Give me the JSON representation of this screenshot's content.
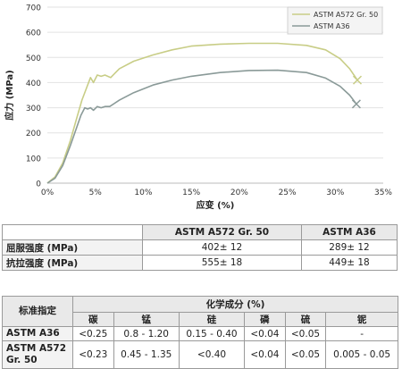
{
  "chart_data": {
    "type": "line",
    "xlabel": "应变 (%)",
    "ylabel": "应力 (MPa)",
    "xlim": [
      0,
      35
    ],
    "ylim": [
      0,
      700
    ],
    "x_ticks": [
      "0%",
      "5%",
      "10%",
      "15%",
      "20%",
      "25%",
      "30%",
      "35%"
    ],
    "y_ticks": [
      "0",
      "100",
      "200",
      "300",
      "400",
      "500",
      "600",
      "700"
    ],
    "grid": "horizontal",
    "legend": "top-right",
    "series": [
      {
        "name": "ASTM A572 Gr. 50",
        "color": "#c8cd86",
        "end_marker": "x",
        "points": [
          [
            0,
            0
          ],
          [
            0.8,
            25
          ],
          [
            1.6,
            80
          ],
          [
            2.4,
            170
          ],
          [
            3.0,
            250
          ],
          [
            3.6,
            330
          ],
          [
            4.1,
            380
          ],
          [
            4.5,
            420
          ],
          [
            4.8,
            400
          ],
          [
            5.2,
            430
          ],
          [
            5.6,
            425
          ],
          [
            6.0,
            430
          ],
          [
            6.6,
            420
          ],
          [
            7.5,
            455
          ],
          [
            9,
            485
          ],
          [
            11,
            510
          ],
          [
            13,
            530
          ],
          [
            15,
            545
          ],
          [
            18,
            553
          ],
          [
            21,
            556
          ],
          [
            24,
            556
          ],
          [
            27,
            548
          ],
          [
            29,
            530
          ],
          [
            30.5,
            495
          ],
          [
            31.5,
            455
          ],
          [
            32.3,
            410
          ]
        ]
      },
      {
        "name": "ASTM A36",
        "color": "#8a9a98",
        "end_marker": "x",
        "points": [
          [
            0,
            0
          ],
          [
            0.8,
            20
          ],
          [
            1.6,
            70
          ],
          [
            2.4,
            150
          ],
          [
            3.0,
            215
          ],
          [
            3.5,
            270
          ],
          [
            3.9,
            300
          ],
          [
            4.2,
            295
          ],
          [
            4.5,
            300
          ],
          [
            4.8,
            290
          ],
          [
            5.2,
            305
          ],
          [
            5.6,
            300
          ],
          [
            6.0,
            305
          ],
          [
            6.5,
            305
          ],
          [
            7.5,
            330
          ],
          [
            9,
            360
          ],
          [
            11,
            390
          ],
          [
            13,
            410
          ],
          [
            15,
            425
          ],
          [
            18,
            440
          ],
          [
            21,
            448
          ],
          [
            24,
            449
          ],
          [
            27,
            440
          ],
          [
            29,
            418
          ],
          [
            30.5,
            385
          ],
          [
            31.5,
            350
          ],
          [
            32.2,
            315
          ]
        ]
      }
    ]
  },
  "properties_table": {
    "headers": [
      "",
      "ASTM A572 Gr. 50",
      "ASTM A36"
    ],
    "rows": [
      {
        "label": "屈服强度 (MPa)",
        "a572": "402± 12",
        "a36": "289± 12"
      },
      {
        "label": "抗拉强度 (MPa)",
        "a572": "555± 18",
        "a36": "449± 18"
      }
    ]
  },
  "composition_table": {
    "standard_header": "标准指定",
    "group_header": "化学成分 (%)",
    "elements": [
      "碳",
      "锰",
      "硅",
      "磷",
      "硫",
      "铌"
    ],
    "rows": [
      {
        "standard": "ASTM A36",
        "values": [
          "<0.25",
          "0.8 - 1.20",
          "0.15 - 0.40",
          "<0.04",
          "<0.05",
          "-"
        ]
      },
      {
        "standard": "ASTM A572 Gr. 50",
        "values": [
          "<0.23",
          "0.45 - 1.35",
          "<0.40",
          "<0.04",
          "<0.05",
          "0.005 - 0.05"
        ]
      }
    ]
  }
}
